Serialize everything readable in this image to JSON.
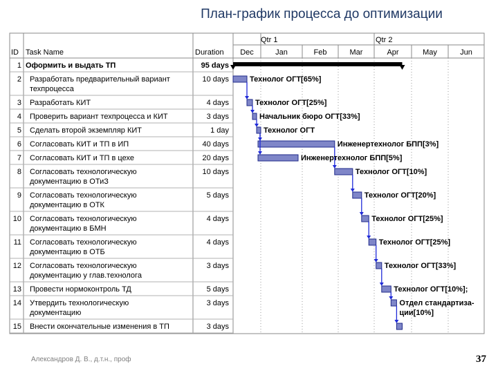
{
  "slide": {
    "title": "План-график процесса до оптимизации",
    "author": "Александров Д. В., д.т.н., проф",
    "page_number": "37"
  },
  "chart_data": {
    "type": "gantt",
    "columns": {
      "id": "ID",
      "task": "Task Name",
      "duration": "Duration"
    },
    "quarters": [
      "Qtr 1",
      "Qtr 2"
    ],
    "months": [
      "Dec",
      "Jan",
      "Feb",
      "Mar",
      "Apr",
      "May",
      "Jun"
    ],
    "axis_start": "Dec",
    "tasks": [
      {
        "id": "1",
        "name": [
          "Оформить и выдать ТП"
        ],
        "duration": "95 days",
        "bold": true,
        "summary": true,
        "start": 0.0,
        "end": 4.75,
        "resource": ""
      },
      {
        "id": "2",
        "name": [
          "Разработать предварительный вариант",
          "техпроцесса"
        ],
        "duration": "10 days",
        "start": 0.0,
        "end": 0.5,
        "resource": "Технолог ОГТ[65%]"
      },
      {
        "id": "3",
        "name": [
          "Разработать КИТ"
        ],
        "duration": "4 days",
        "start": 0.5,
        "end": 0.7,
        "resource": "Технолог ОГТ[25%]"
      },
      {
        "id": "4",
        "name": [
          "Проверить вариант техпроцесса и КИТ"
        ],
        "duration": "3 days",
        "start": 0.7,
        "end": 0.85,
        "resource": "Начальник бюро ОГТ[33%]"
      },
      {
        "id": "5",
        "name": [
          "Сделать второй экземпляр КИТ"
        ],
        "duration": "1 day",
        "start": 0.85,
        "end": 0.9,
        "resource": "Технолог ОГТ"
      },
      {
        "id": "6",
        "name": [
          "Согласовать КИТ и ТП в ИП"
        ],
        "duration": "40 days",
        "start": 0.9,
        "end": 2.9,
        "resource": "Инженертехнолог БПП[3%]"
      },
      {
        "id": "7",
        "name": [
          "Согласовать КИТ и ТП в цехе"
        ],
        "duration": "20 days",
        "start": 0.9,
        "end": 1.9,
        "resource": "Инженертехнолог БПП[5%]"
      },
      {
        "id": "8",
        "name": [
          "Согласовать технологическую",
          "документацию в ОТиЗ"
        ],
        "duration": "10 days",
        "start": 2.9,
        "end": 3.4,
        "resource": "Технолог ОГТ[10%]"
      },
      {
        "id": "9",
        "name": [
          "Согласовать технологическую",
          "документацию в ОТК"
        ],
        "duration": "5 days",
        "start": 3.4,
        "end": 3.65,
        "resource": "Технолог ОГТ[20%]"
      },
      {
        "id": "10",
        "name": [
          "Согласовать технологическую",
          "документацию в БМН"
        ],
        "duration": "4 days",
        "start": 3.65,
        "end": 3.85,
        "resource": "Технолог ОГТ[25%]"
      },
      {
        "id": "11",
        "name": [
          "Согласовать технологическую",
          "документацию в ОТБ"
        ],
        "duration": "4 days",
        "start": 3.85,
        "end": 4.05,
        "resource": "Технолог ОГТ[25%]"
      },
      {
        "id": "12",
        "name": [
          "Согласовать технологическую",
          "документацию у глав.технолога"
        ],
        "duration": "3 days",
        "start": 4.05,
        "end": 4.2,
        "resource": "Технолог ОГТ[33%]"
      },
      {
        "id": "13",
        "name": [
          "Провести нормоконтроль ТД"
        ],
        "duration": "5 days",
        "start": 4.2,
        "end": 4.45,
        "resource": "Технолог ОГТ[10%];"
      },
      {
        "id": "14",
        "name": [
          "Утвердить технологическую",
          "документацию"
        ],
        "duration": "3 days",
        "start": 4.45,
        "end": 4.6,
        "resource": [
          "Отдел стандартиза-",
          "ции[10%]"
        ]
      },
      {
        "id": "15",
        "name": [
          "Внести окончательные изменения в ТП"
        ],
        "duration": "3 days",
        "start": 4.6,
        "end": 4.75,
        "resource": ""
      }
    ],
    "colors": {
      "bar_fill": "#7f86c8",
      "bar_stroke": "#1f2a8a",
      "arrow": "#1f2ad8",
      "summary": "#000000",
      "title": "#1f3864"
    }
  }
}
